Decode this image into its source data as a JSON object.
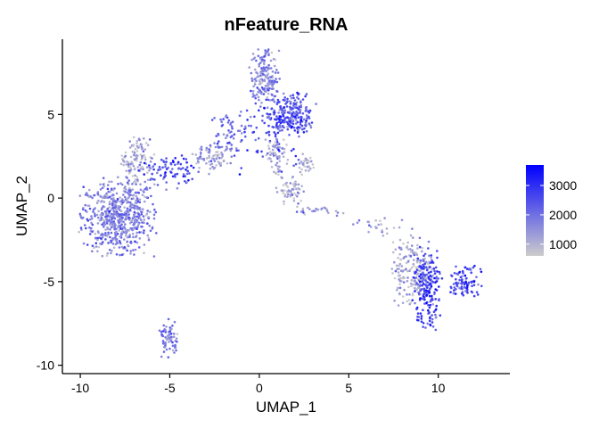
{
  "chart_data": {
    "type": "scatter",
    "title": "nFeature_RNA",
    "xlabel": "UMAP_1",
    "ylabel": "UMAP_2",
    "xlim": [
      -11,
      14
    ],
    "ylim": [
      -10.5,
      9.5
    ],
    "xticks": [
      -10,
      -5,
      0,
      5,
      10
    ],
    "yticks": [
      -10,
      -5,
      0,
      5
    ],
    "grid": false,
    "legend": {
      "position": "right",
      "type": "colorbar",
      "ticks": [
        1000,
        2000,
        3000
      ],
      "range": [
        600,
        3700
      ],
      "low_color": "#cccccc",
      "high_color": "#0000ff"
    },
    "clusters": [
      {
        "cx": -7.9,
        "cy": -1.1,
        "sx": 1.0,
        "sy": 1.1,
        "n": 600,
        "value": 1700
      },
      {
        "cx": -6.8,
        "cy": 2.2,
        "sx": 0.45,
        "sy": 0.8,
        "n": 120,
        "value": 1150
      },
      {
        "cx": -5.0,
        "cy": 1.6,
        "sx": 0.8,
        "sy": 0.5,
        "n": 80,
        "value": 2600
      },
      {
        "cx": -2.6,
        "cy": 2.4,
        "sx": 0.6,
        "sy": 0.45,
        "n": 80,
        "value": 1200
      },
      {
        "cx": -1.6,
        "cy": 3.9,
        "sx": 0.6,
        "sy": 0.7,
        "n": 70,
        "value": 2100
      },
      {
        "cx": 0.3,
        "cy": 7.2,
        "sx": 0.4,
        "sy": 0.8,
        "n": 160,
        "value": 1600
      },
      {
        "cx": 1.7,
        "cy": 5.0,
        "sx": 0.7,
        "sy": 0.7,
        "n": 240,
        "value": 2400
      },
      {
        "cx": 0.8,
        "cy": 3.6,
        "sx": 0.9,
        "sy": 1.1,
        "n": 60,
        "value": 2700
      },
      {
        "cx": 1.0,
        "cy": 2.5,
        "sx": 0.3,
        "sy": 0.6,
        "n": 60,
        "value": 1000
      },
      {
        "cx": 2.6,
        "cy": 2.0,
        "sx": 0.25,
        "sy": 0.3,
        "n": 30,
        "value": 900
      },
      {
        "cx": 1.7,
        "cy": 0.5,
        "sx": 0.4,
        "sy": 0.4,
        "n": 60,
        "value": 1000
      },
      {
        "cx": 3.5,
        "cy": -0.8,
        "sx": 0.7,
        "sy": 0.15,
        "n": 25,
        "value": 1500
      },
      {
        "cx": 6.8,
        "cy": -1.7,
        "sx": 0.8,
        "sy": 0.25,
        "n": 25,
        "value": 1300
      },
      {
        "cx": 8.6,
        "cy": -4.3,
        "sx": 0.6,
        "sy": 1.0,
        "n": 200,
        "value": 1100
      },
      {
        "cx": 9.4,
        "cy": -5.5,
        "sx": 0.4,
        "sy": 1.2,
        "n": 180,
        "value": 2700
      },
      {
        "cx": 11.5,
        "cy": -5.0,
        "sx": 0.45,
        "sy": 0.45,
        "n": 90,
        "value": 2600
      },
      {
        "cx": -5.1,
        "cy": -8.4,
        "sx": 0.3,
        "sy": 0.55,
        "n": 70,
        "value": 1800
      }
    ]
  }
}
